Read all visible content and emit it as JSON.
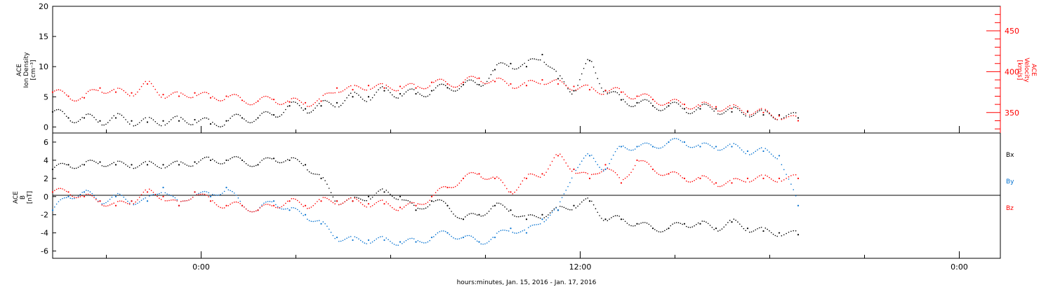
{
  "xlabel": "hours:minutes, Jan. 15, 2016 - Jan. 17, 2016",
  "x_ticks": [
    "0:00",
    "12:00",
    "0:00"
  ],
  "chart_data": [
    {
      "type": "scatter",
      "title": "",
      "ylabel": "ACE Ion Density [cm⁻³]",
      "ylabel_lines": [
        "ACE",
        "Ion Density",
        "[cm⁻³]"
      ],
      "y_ticks": [
        0,
        5,
        10,
        15,
        20
      ],
      "ylim": [
        -1,
        20
      ],
      "y2label": "ACE Velocity [km/s]",
      "y2label_lines": [
        "ACE",
        "Velocity",
        "[km/s]"
      ],
      "y2_ticks": [
        350,
        400,
        450
      ],
      "y2lim": [
        325,
        480
      ],
      "xlim_hours": [
        -4.7,
        25.3
      ],
      "x_tick_hours": [
        0,
        12,
        24
      ],
      "data_end_hour": 18.9,
      "series": [
        {
          "name": "",
          "axis": "left",
          "color": "#000000",
          "x": [
            -4.7,
            -4.2,
            -3.7,
            -3.2,
            -2.7,
            -2.2,
            -1.7,
            -1.2,
            -0.7,
            -0.2,
            0.3,
            0.8,
            1.3,
            1.8,
            2.3,
            2.8,
            3.3,
            3.8,
            4.3,
            4.8,
            5.3,
            5.8,
            6.3,
            6.8,
            7.3,
            7.8,
            8.3,
            8.8,
            9.3,
            9.8,
            10.3,
            10.8,
            11.3,
            11.8,
            12.3,
            12.8,
            13.3,
            13.8,
            14.3,
            14.8,
            15.3,
            15.8,
            16.3,
            16.8,
            17.3,
            17.8,
            18.3,
            18.9
          ],
          "y": [
            2.5,
            1.5,
            1.5,
            1.0,
            1.5,
            1.0,
            0.8,
            1.0,
            1.0,
            1.2,
            0.5,
            1.0,
            1.5,
            1.5,
            2.0,
            3.5,
            3.0,
            3.5,
            4.0,
            5.0,
            5.0,
            6.0,
            5.5,
            5.5,
            6.0,
            6.5,
            7.0,
            7.0,
            9.5,
            10.5,
            10.0,
            12.0,
            8.0,
            6.0,
            11.0,
            6.0,
            4.5,
            4.0,
            3.5,
            3.5,
            3.0,
            3.0,
            3.0,
            2.5,
            2.5,
            2.0,
            2.0,
            1.5
          ]
        },
        {
          "name": "",
          "axis": "right",
          "color": "#ff0000",
          "x": [
            -4.7,
            -4.2,
            -3.7,
            -3.2,
            -2.7,
            -2.2,
            -1.7,
            -1.2,
            -0.7,
            -0.2,
            0.3,
            0.8,
            1.3,
            1.8,
            2.3,
            2.8,
            3.3,
            3.8,
            4.3,
            4.8,
            5.3,
            5.8,
            6.3,
            6.8,
            7.3,
            7.8,
            8.3,
            8.8,
            9.3,
            9.8,
            10.3,
            10.8,
            11.3,
            11.8,
            12.3,
            12.8,
            13.3,
            13.8,
            14.3,
            14.8,
            15.3,
            15.8,
            16.3,
            16.8,
            17.3,
            17.8,
            18.3,
            18.9
          ],
          "y": [
            375,
            370,
            368,
            380,
            375,
            374,
            385,
            372,
            370,
            374,
            368,
            370,
            365,
            364,
            366,
            363,
            362,
            364,
            380,
            378,
            383,
            380,
            382,
            380,
            387,
            385,
            387,
            392,
            388,
            385,
            383,
            390,
            385,
            382,
            378,
            377,
            375,
            370,
            366,
            362,
            360,
            358,
            357,
            355,
            352,
            350,
            346,
            340
          ]
        }
      ]
    },
    {
      "type": "scatter",
      "title": "",
      "ylabel": "ACE B [nT]",
      "ylabel_lines": [
        "ACE",
        "B",
        "[nT]"
      ],
      "y_ticks": [
        -6,
        -4,
        -2,
        0,
        2,
        4,
        6
      ],
      "ylim": [
        -6.8,
        7.0
      ],
      "xlim_hours": [
        -4.7,
        25.3
      ],
      "x_tick_hours": [
        0,
        12,
        24
      ],
      "series": [
        {
          "name": "Bx",
          "color": "#000000",
          "x": [
            -4.7,
            -4.2,
            -3.7,
            -3.2,
            -2.7,
            -2.2,
            -1.7,
            -1.2,
            -0.7,
            -0.2,
            0.3,
            0.8,
            1.3,
            1.8,
            2.3,
            2.8,
            3.3,
            3.8,
            4.3,
            4.8,
            5.3,
            5.8,
            6.3,
            6.8,
            7.3,
            7.8,
            8.3,
            8.8,
            9.3,
            9.8,
            10.3,
            10.8,
            11.3,
            11.8,
            12.3,
            12.8,
            13.3,
            13.8,
            14.3,
            14.8,
            15.3,
            15.8,
            16.3,
            16.8,
            17.3,
            17.8,
            18.3,
            18.9
          ],
          "y": [
            3.0,
            3.5,
            3.5,
            3.8,
            3.5,
            3.5,
            3.5,
            3.5,
            3.5,
            3.8,
            4.0,
            4.0,
            4.0,
            3.5,
            4.2,
            4.0,
            3.5,
            2.0,
            -0.5,
            -0.5,
            0.0,
            0.5,
            0.0,
            -1.5,
            -0.5,
            -1.0,
            -2.5,
            -2.0,
            -1.0,
            -1.5,
            -2.5,
            -2.0,
            -1.5,
            -1.0,
            -0.5,
            -2.5,
            -2.5,
            -3.0,
            -3.5,
            -3.5,
            -3.0,
            -3.0,
            -3.5,
            -2.8,
            -3.5,
            -3.8,
            -4.0,
            -4.2
          ]
        },
        {
          "name": "By",
          "color": "#0070d0",
          "x": [
            -4.7,
            -4.2,
            -3.7,
            -3.2,
            -2.7,
            -2.2,
            -1.7,
            -1.2,
            -0.7,
            -0.2,
            0.3,
            0.8,
            1.3,
            1.8,
            2.3,
            2.8,
            3.3,
            3.8,
            4.3,
            4.8,
            5.3,
            5.8,
            6.3,
            6.8,
            7.3,
            7.8,
            8.3,
            8.8,
            9.3,
            9.8,
            10.3,
            10.8,
            11.3,
            11.8,
            12.3,
            12.8,
            13.3,
            13.8,
            14.3,
            14.8,
            15.3,
            15.8,
            16.3,
            16.8,
            17.3,
            17.8,
            18.3,
            18.9
          ],
          "y": [
            -1.5,
            0.0,
            0.5,
            -0.5,
            0.0,
            -0.5,
            -0.5,
            1.0,
            -1.0,
            0.5,
            0.0,
            1.0,
            -1.0,
            -1.5,
            -0.5,
            -1.5,
            -2.0,
            -3.0,
            -4.5,
            -4.8,
            -4.8,
            -4.8,
            -5.0,
            -5.0,
            -4.5,
            -4.0,
            -4.5,
            -5.0,
            -4.5,
            -3.5,
            -4.0,
            -2.5,
            -1.5,
            3.0,
            4.5,
            3.0,
            5.5,
            5.5,
            5.5,
            6.0,
            6.0,
            5.5,
            5.5,
            5.5,
            5.0,
            5.0,
            4.5,
            -1.0
          ]
        },
        {
          "name": "Bz",
          "color": "#ff0000",
          "x": [
            -4.7,
            -4.2,
            -3.7,
            -3.2,
            -2.7,
            -2.2,
            -1.7,
            -1.2,
            -0.7,
            -0.2,
            0.3,
            0.8,
            1.3,
            1.8,
            2.3,
            2.8,
            3.3,
            3.8,
            4.3,
            4.8,
            5.3,
            5.8,
            6.3,
            6.8,
            7.3,
            7.8,
            8.3,
            8.8,
            9.3,
            9.8,
            10.3,
            10.8,
            11.3,
            11.8,
            12.3,
            12.8,
            13.3,
            13.8,
            14.3,
            14.8,
            15.3,
            15.8,
            16.3,
            16.8,
            17.3,
            17.8,
            18.3,
            18.9
          ],
          "y": [
            0.5,
            0.5,
            0.0,
            -0.5,
            -1.0,
            -0.5,
            0.5,
            0.0,
            -1.0,
            0.5,
            -0.5,
            -1.0,
            -1.0,
            -1.5,
            -1.0,
            -0.5,
            -1.0,
            -0.5,
            -0.5,
            -0.5,
            -0.8,
            -0.8,
            -1.2,
            -1.0,
            0.0,
            1.0,
            2.0,
            2.5,
            2.0,
            0.5,
            2.0,
            2.5,
            4.5,
            3.0,
            2.0,
            3.5,
            1.5,
            4.0,
            3.0,
            2.5,
            2.0,
            2.0,
            1.5,
            1.5,
            2.0,
            2.0,
            2.0,
            2.0
          ]
        }
      ]
    }
  ],
  "legend_labels": {
    "Bx": "Bx",
    "By": "By",
    "Bz": "Bz"
  }
}
